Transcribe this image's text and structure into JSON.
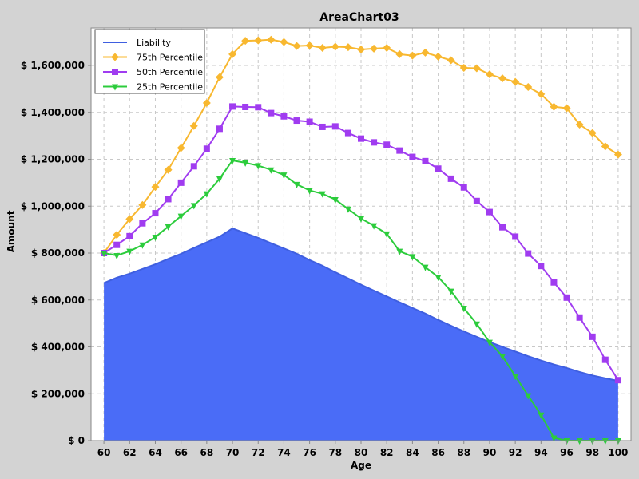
{
  "chart_data": {
    "type": "area",
    "title": "AreaChart03",
    "xlabel": "Age",
    "ylabel": "Amount",
    "xlim": [
      59,
      101
    ],
    "ylim": [
      0,
      1760000
    ],
    "x": [
      60,
      61,
      62,
      63,
      64,
      65,
      66,
      67,
      68,
      69,
      70,
      71,
      72,
      73,
      74,
      75,
      76,
      77,
      78,
      79,
      80,
      81,
      82,
      83,
      84,
      85,
      86,
      87,
      88,
      89,
      90,
      91,
      92,
      93,
      94,
      95,
      96,
      97,
      98,
      99,
      100
    ],
    "x_ticks": [
      60,
      62,
      64,
      66,
      68,
      70,
      72,
      74,
      76,
      78,
      80,
      82,
      84,
      86,
      88,
      90,
      92,
      94,
      96,
      98,
      100
    ],
    "y_ticks": [
      0,
      200000,
      400000,
      600000,
      800000,
      1000000,
      1200000,
      1400000,
      1600000
    ],
    "y_tick_labels": [
      "$ 0",
      "$ 200,000",
      "$ 400,000",
      "$ 600,000",
      "$ 800,000",
      "$ 1,000,000",
      "$ 1,200,000",
      "$ 1,400,000",
      "$ 1,600,000"
    ],
    "x_tick_labels": [
      "60",
      "62",
      "64",
      "66",
      "68",
      "70",
      "72",
      "74",
      "76",
      "78",
      "80",
      "82",
      "84",
      "86",
      "88",
      "90",
      "92",
      "94",
      "96",
      "98",
      "100"
    ],
    "grid": true,
    "legend_position": "top-left",
    "series": [
      {
        "name": "Liability",
        "style": "area",
        "color": "#4a6cf7",
        "values": [
          672000,
          695000,
          712000,
          732000,
          752000,
          775000,
          797000,
          822000,
          846000,
          870000,
          905000,
          885000,
          865000,
          842000,
          820000,
          797000,
          770000,
          746000,
          718000,
          692000,
          665000,
          640000,
          615000,
          590000,
          566000,
          542000,
          515000,
          490000,
          466000,
          443000,
          420000,
          400000,
          380000,
          360000,
          342000,
          325000,
          310000,
          293000,
          278000,
          266000,
          255000
        ]
      },
      {
        "name": "75th Percentile",
        "style": "line",
        "marker": "diamond",
        "color": "#f8b830",
        "values": [
          800000,
          878000,
          945000,
          1005000,
          1082000,
          1155000,
          1248000,
          1342000,
          1440000,
          1550000,
          1648000,
          1705000,
          1707000,
          1710000,
          1700000,
          1683000,
          1685000,
          1675000,
          1680000,
          1678000,
          1668000,
          1672000,
          1675000,
          1648000,
          1642000,
          1655000,
          1638000,
          1622000,
          1590000,
          1588000,
          1562000,
          1545000,
          1530000,
          1508000,
          1478000,
          1424000,
          1418000,
          1348000,
          1312000,
          1255000,
          1220000
        ]
      },
      {
        "name": "50th Percentile",
        "style": "line",
        "marker": "square",
        "color": "#a03cf0",
        "values": [
          800000,
          835000,
          872000,
          927000,
          970000,
          1030000,
          1100000,
          1170000,
          1245000,
          1330000,
          1425000,
          1423000,
          1422000,
          1397000,
          1383000,
          1365000,
          1360000,
          1338000,
          1340000,
          1312000,
          1288000,
          1272000,
          1262000,
          1237000,
          1210000,
          1192000,
          1160000,
          1117000,
          1080000,
          1022000,
          975000,
          910000,
          870000,
          798000,
          745000,
          675000,
          610000,
          525000,
          443000,
          345000,
          258000
        ]
      },
      {
        "name": "25th Percentile",
        "style": "line",
        "marker": "triangle-down",
        "color": "#2ccc3c",
        "values": [
          800000,
          790000,
          808000,
          835000,
          868000,
          913000,
          958000,
          1003000,
          1053000,
          1117000,
          1195000,
          1185000,
          1173000,
          1155000,
          1133000,
          1093000,
          1067000,
          1053000,
          1028000,
          988000,
          947000,
          917000,
          882000,
          808000,
          785000,
          740000,
          698000,
          638000,
          565000,
          498000,
          420000,
          360000,
          275000,
          192000,
          110000,
          12000,
          0,
          0,
          0,
          0,
          0
        ]
      }
    ]
  }
}
